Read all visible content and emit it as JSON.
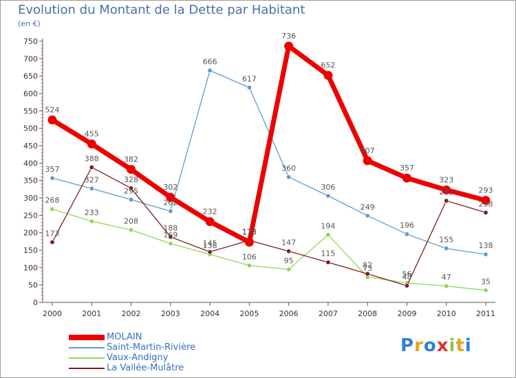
{
  "title": "Evolution du Montant de la Dette par Habitant",
  "unit": "(en €)",
  "brand": "Proxiti",
  "chart_data": {
    "type": "line",
    "x": [
      "2000",
      "2001",
      "2002",
      "2003",
      "2004",
      "2005",
      "2006",
      "2007",
      "2008",
      "2009",
      "2010",
      "2011"
    ],
    "yticks": [
      0,
      50,
      100,
      150,
      200,
      250,
      300,
      350,
      400,
      450,
      500,
      550,
      600,
      650,
      700,
      750
    ],
    "ylim": [
      0,
      750
    ],
    "grid": false,
    "legend_position": "bottom-left",
    "series": [
      {
        "name": "MOLAIN",
        "color": "#ee0000",
        "values": [
          524,
          455,
          382,
          302,
          232,
          173,
          736,
          652,
          407,
          357,
          323,
          293
        ]
      },
      {
        "name": "Saint-Martin-Rivière",
        "color": "#5b9bd5",
        "values": [
          357,
          327,
          295,
          262,
          666,
          617,
          360,
          306,
          249,
          196,
          155,
          138
        ]
      },
      {
        "name": "Vaux-Andigny",
        "color": "#8fd65a",
        "values": [
          268,
          233,
          208,
          169,
          138,
          106,
          95,
          194,
          73,
          56,
          47,
          35
        ]
      },
      {
        "name": "La Vallée-Mulâtre",
        "color": "#7a1f1f",
        "values": [
          173,
          388,
          328,
          188,
          145,
          178,
          147,
          115,
          82,
          48,
          292,
          258
        ]
      }
    ]
  }
}
